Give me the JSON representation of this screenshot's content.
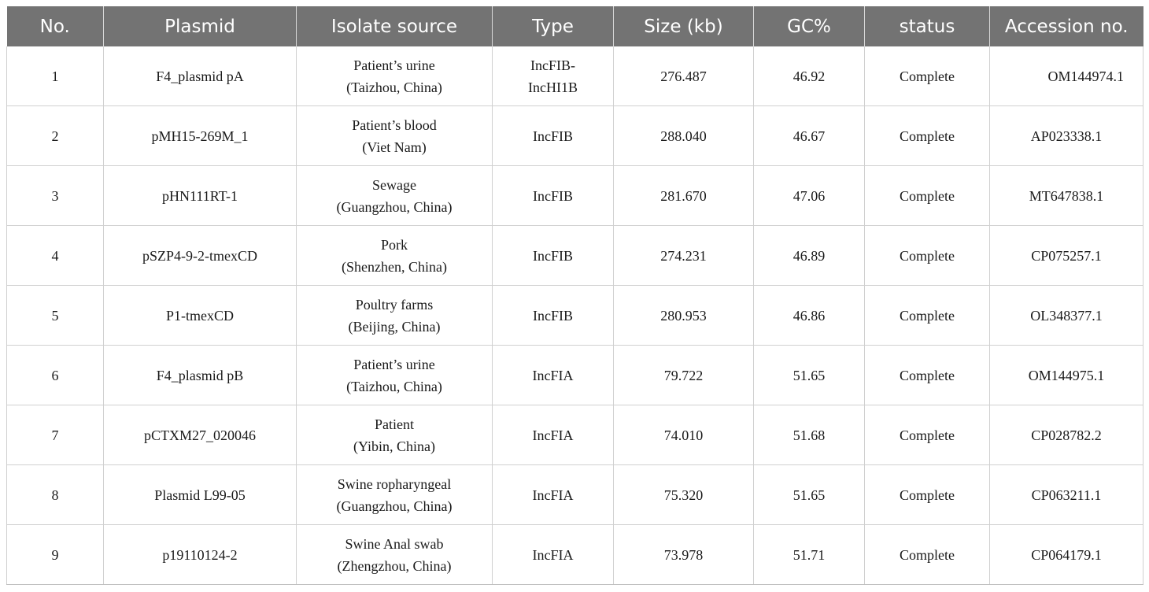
{
  "table": {
    "headers": [
      "No.",
      "Plasmid",
      "Isolate source",
      "Type",
      "Size (kb)",
      "GC%",
      "status",
      "Accession no."
    ],
    "rows": [
      {
        "no": "1",
        "plasmid": "F4_plasmid pA",
        "source_line1": "Patient’s urine",
        "source_line2": "(Taizhou, China)",
        "type_line1": "IncFIB-",
        "type_line2": "IncHI1B",
        "size": "276.487",
        "gc": "46.92",
        "status": "Complete",
        "accession": "OM144974.1"
      },
      {
        "no": "2",
        "plasmid": "pMH15-269M_1",
        "source_line1": "Patient’s blood",
        "source_line2": "(Viet Nam)",
        "type_line1": "IncFIB",
        "type_line2": "",
        "size": "288.040",
        "gc": "46.67",
        "status": "Complete",
        "accession": "AP023338.1"
      },
      {
        "no": "3",
        "plasmid": "pHN111RT-1",
        "source_line1": "Sewage",
        "source_line2": "(Guangzhou, China)",
        "type_line1": "IncFIB",
        "type_line2": "",
        "size": "281.670",
        "gc": "47.06",
        "status": "Complete",
        "accession": "MT647838.1"
      },
      {
        "no": "4",
        "plasmid": "pSZP4-9-2-tmexCD",
        "source_line1": "Pork",
        "source_line2": "(Shenzhen, China)",
        "type_line1": "IncFIB",
        "type_line2": "",
        "size": "274.231",
        "gc": "46.89",
        "status": "Complete",
        "accession": "CP075257.1"
      },
      {
        "no": "5",
        "plasmid": "P1-tmexCD",
        "source_line1": "Poultry farms",
        "source_line2": "(Beijing, China)",
        "type_line1": "IncFIB",
        "type_line2": "",
        "size": "280.953",
        "gc": "46.86",
        "status": "Complete",
        "accession": "OL348377.1"
      },
      {
        "no": "6",
        "plasmid": "F4_plasmid pB",
        "source_line1": "Patient’s urine",
        "source_line2": "(Taizhou, China)",
        "type_line1": "IncFIA",
        "type_line2": "",
        "size": "79.722",
        "gc": "51.65",
        "status": "Complete",
        "accession": "OM144975.1"
      },
      {
        "no": "7",
        "plasmid": "pCTXM27_020046",
        "source_line1": "Patient",
        "source_line2": "(Yibin, China)",
        "type_line1": "IncFIA",
        "type_line2": "",
        "size": "74.010",
        "gc": "51.68",
        "status": "Complete",
        "accession": "CP028782.2"
      },
      {
        "no": "8",
        "plasmid": "Plasmid L99-05",
        "source_line1": "Swine ropharyngeal",
        "source_line2": "(Guangzhou, China)",
        "type_line1": "IncFIA",
        "type_line2": "",
        "size": "75.320",
        "gc": "51.65",
        "status": "Complete",
        "accession": "CP063211.1"
      },
      {
        "no": "9",
        "plasmid": "p19110124-2",
        "source_line1": "Swine Anal swab",
        "source_line2": "(Zhengzhou, China)",
        "type_line1": "IncFIA",
        "type_line2": "",
        "size": "73.978",
        "gc": "51.71",
        "status": "Complete",
        "accession": "CP064179.1"
      }
    ]
  },
  "colors": {
    "header_bg": "#737373",
    "header_text": "#ffffff",
    "grid": "#d0d0d0"
  }
}
